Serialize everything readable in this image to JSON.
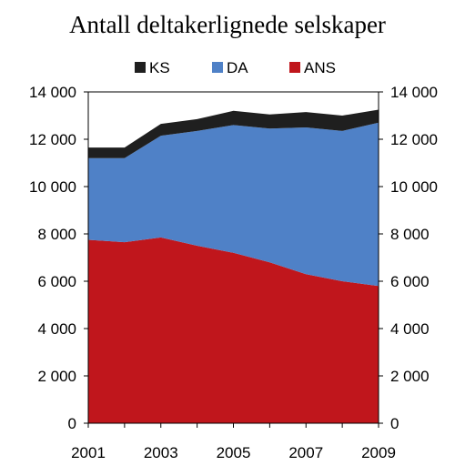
{
  "chart_data": {
    "type": "area",
    "stacked": true,
    "title": "Antall deltakerlignede selskaper",
    "x": [
      2001,
      2002,
      2003,
      2004,
      2005,
      2006,
      2007,
      2008,
      2009
    ],
    "x_tick_labels": [
      "2001",
      "2003",
      "2005",
      "2007",
      "2009"
    ],
    "ylim": [
      0,
      14000
    ],
    "y_tick_labels": [
      "0",
      "2 000",
      "4 000",
      "6 000",
      "8 000",
      "10 000",
      "12 000",
      "14 000"
    ],
    "y_tick_values": [
      0,
      2000,
      4000,
      6000,
      8000,
      10000,
      12000,
      14000
    ],
    "secondary_y_axis": true,
    "grid": false,
    "legend_position": "top",
    "series": [
      {
        "name": "ANS",
        "color": "#c0161c",
        "values": [
          7750,
          7650,
          7850,
          7500,
          7200,
          6800,
          6300,
          6000,
          5800
        ]
      },
      {
        "name": "DA",
        "color": "#4f81c7",
        "values": [
          3450,
          3550,
          4300,
          4850,
          5400,
          5650,
          6200,
          6350,
          6900
        ]
      },
      {
        "name": "KS",
        "color": "#1f1f1f",
        "values": [
          450,
          450,
          500,
          500,
          600,
          600,
          650,
          650,
          550
        ]
      }
    ],
    "legend_order": [
      "KS",
      "DA",
      "ANS"
    ]
  }
}
